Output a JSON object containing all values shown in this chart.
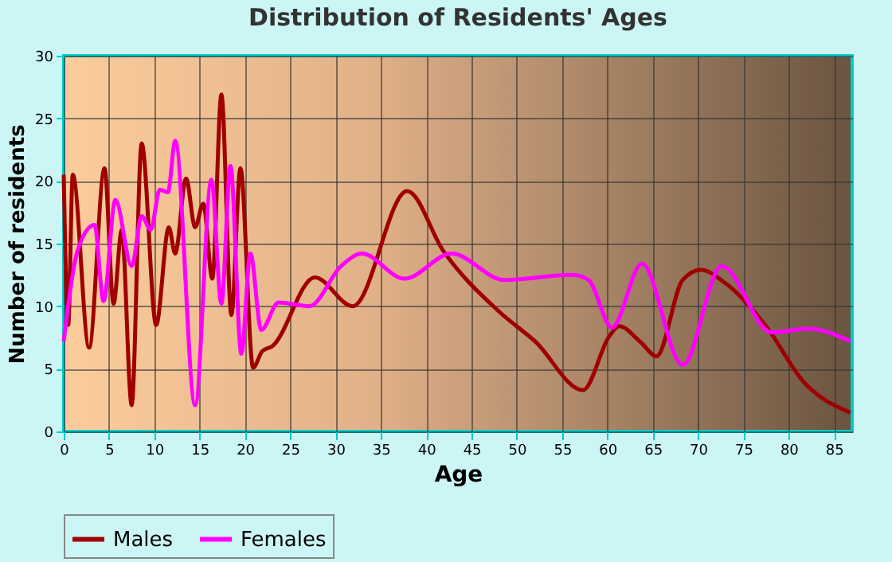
{
  "chart_data": {
    "type": "line",
    "title": "Distribution of Residents' Ages",
    "xlabel": "Age",
    "ylabel": "Number of residents",
    "xlim": [
      0,
      87
    ],
    "xticks": [
      0,
      5,
      10,
      15,
      20,
      25,
      30,
      35,
      40,
      45,
      50,
      55,
      60,
      65,
      70,
      75,
      80,
      85
    ],
    "ylim": [
      0,
      30
    ],
    "yticks": [
      0,
      5,
      10,
      15,
      20,
      25,
      30
    ],
    "grid": true,
    "legend": "bottom",
    "series": [
      {
        "name": "Males",
        "color": "#a00000",
        "x": [
          0,
          0.5,
          1,
          2.8,
          4.5,
          5.5,
          6.4,
          7.5,
          8.6,
          10.2,
          11.6,
          12.3,
          13.5,
          14.5,
          15.4,
          16.4,
          17.4,
          18.5,
          19.5,
          20.9,
          21.9,
          23,
          27.7,
          31.9,
          37.9,
          41.9,
          48,
          52,
          57.3,
          60.2,
          61.3,
          63.7,
          65.4,
          68.3,
          70.3,
          72.9,
          77.6,
          81.6,
          86.8
        ],
        "values": [
          20.5,
          8.5,
          20.5,
          6.7,
          21,
          10.2,
          16.1,
          2.1,
          23,
          8.5,
          16.3,
          14.2,
          20.2,
          16.3,
          18.2,
          12.2,
          26.9,
          9.3,
          21,
          5.1,
          6.4,
          6.8,
          12.3,
          10,
          19.2,
          14.4,
          9.6,
          7.2,
          3.3,
          7.6,
          8.4,
          7.1,
          6,
          12.1,
          12.9,
          11.9,
          8.3,
          4,
          1.5
        ]
      },
      {
        "name": "Females",
        "color": "#ff00ff",
        "x": [
          0,
          1.6,
          3.4,
          4.4,
          5.7,
          7.5,
          8.6,
          9.6,
          10.6,
          11.5,
          12.3,
          14.5,
          16.3,
          17.4,
          18.4,
          19.6,
          20.6,
          21.8,
          23.7,
          27.1,
          30.6,
          32.9,
          37.6,
          42.8,
          48.6,
          56.1,
          57.9,
          60.5,
          63.8,
          68.3,
          72.6,
          78.1,
          82.2,
          86.8
        ],
        "values": [
          7.2,
          14.6,
          16.5,
          10.4,
          18.5,
          13.2,
          17.2,
          16.1,
          19.3,
          19.1,
          23.2,
          2.1,
          20.1,
          10.2,
          21.2,
          6.2,
          14.2,
          8.1,
          10.3,
          10,
          13.2,
          14.2,
          12.2,
          14.2,
          12.1,
          12.5,
          12.1,
          8.3,
          13.4,
          5.3,
          13.2,
          7.9,
          8.2,
          7.2
        ]
      }
    ]
  }
}
